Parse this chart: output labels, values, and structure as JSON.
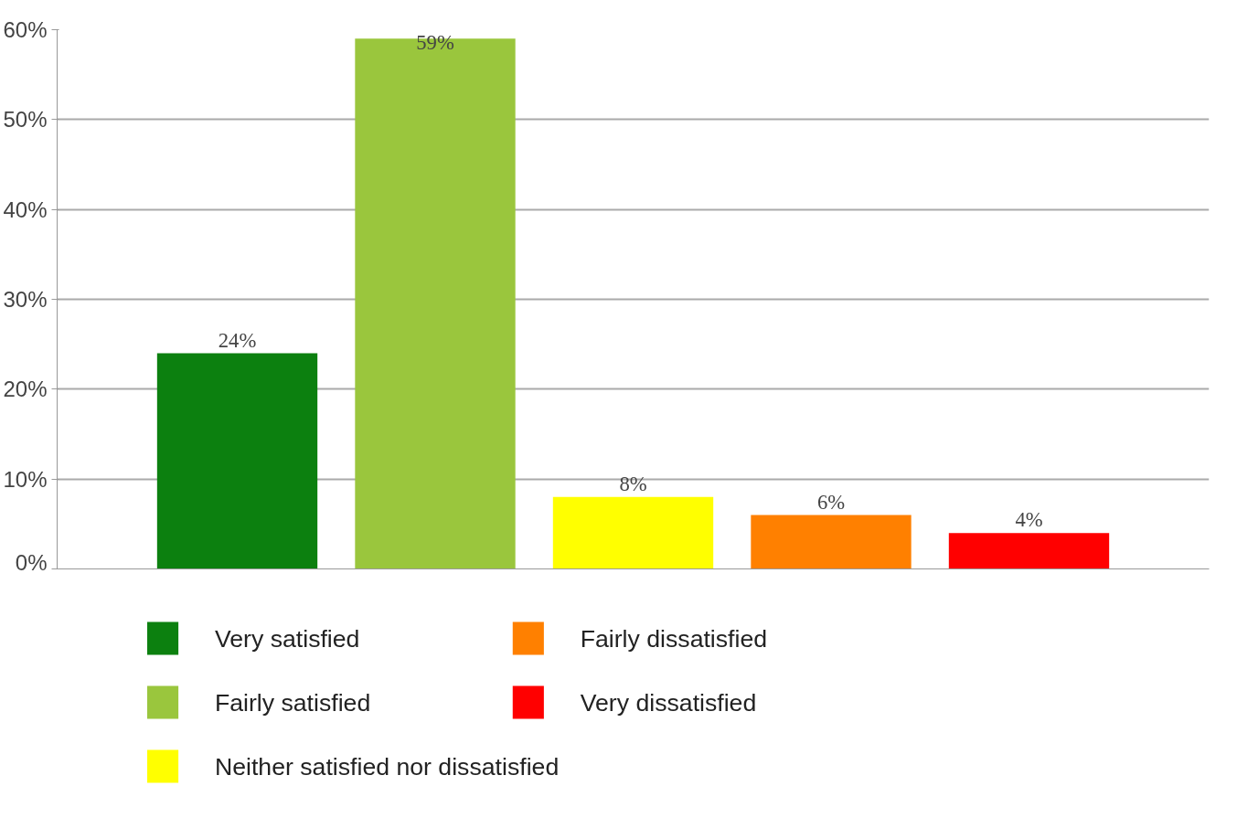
{
  "chart_data": {
    "type": "bar",
    "categories": [
      null,
      null,
      null,
      null,
      null
    ],
    "series": [
      {
        "name": "Very satisfied",
        "color": "#0c800f",
        "values": [
          24,
          null,
          null,
          null,
          null
        ],
        "value_labels": [
          "24%",
          null,
          null,
          null,
          null
        ]
      },
      {
        "name": "Fairly satisfied",
        "color": "#9ac63d",
        "values": [
          null,
          59,
          null,
          null,
          null
        ],
        "value_labels": [
          null,
          "59%",
          null,
          null,
          null
        ]
      },
      {
        "name": "Neither satisfied nor dissatisfied",
        "color": "#ffff00",
        "values": [
          null,
          null,
          8,
          null,
          null
        ],
        "value_labels": [
          null,
          null,
          "8%",
          null,
          null
        ]
      },
      {
        "name": "Fairly dissatisfied",
        "color": "#ff8000",
        "values": [
          null,
          null,
          null,
          6,
          null
        ],
        "value_labels": [
          null,
          null,
          null,
          "6%",
          null
        ]
      },
      {
        "name": "Very dissatisfied",
        "color": "#ff0000",
        "values": [
          null,
          null,
          null,
          null,
          4
        ],
        "value_labels": [
          null,
          null,
          null,
          null,
          "4%"
        ]
      }
    ],
    "ylim": [
      0,
      60
    ],
    "yticks": [
      {
        "value": 0,
        "label": "0%"
      },
      {
        "value": 10,
        "label": "10%"
      },
      {
        "value": 20,
        "label": "20%"
      },
      {
        "value": 30,
        "label": "30%"
      },
      {
        "value": 40,
        "label": "40%"
      },
      {
        "value": 50,
        "label": "50%"
      },
      {
        "value": 60,
        "label": "60%"
      }
    ],
    "grid": "y",
    "legend": "bottom",
    "tick_labels": "y"
  }
}
